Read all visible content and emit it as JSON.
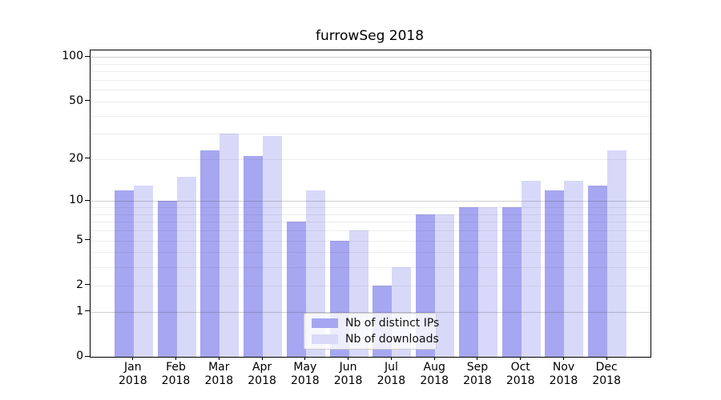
{
  "chart_data": {
    "type": "bar",
    "title": "furrowSeg 2018",
    "categories": [
      "Jan",
      "Feb",
      "Mar",
      "Apr",
      "May",
      "Jun",
      "Jul",
      "Aug",
      "Sep",
      "Oct",
      "Nov",
      "Dec"
    ],
    "category_year": "2018",
    "series": [
      {
        "name": "Nb of distinct IPs",
        "color": "#a6a6f1",
        "bar_fill": "rgba(77,77,227,0.5)",
        "values": [
          12,
          10,
          23,
          21,
          7,
          5,
          2,
          8,
          9,
          9,
          12,
          13
        ]
      },
      {
        "name": "Nb of downloads",
        "color": "#d9d9f8",
        "bar_fill": "rgba(100,100,230,0.25)",
        "values": [
          13,
          15,
          30,
          29,
          12,
          6,
          3,
          8,
          9,
          14,
          14,
          23
        ]
      }
    ],
    "xlabel": "",
    "ylabel": "",
    "yscale": "log1p",
    "ylim": [
      0,
      111
    ],
    "yticks": [
      0,
      1,
      2,
      5,
      10,
      20,
      50,
      100
    ],
    "major_gridlines": [
      1,
      10,
      100
    ],
    "minor_gridlines": [
      2,
      3,
      4,
      5,
      6,
      7,
      8,
      9,
      20,
      30,
      40,
      50,
      60,
      70,
      80,
      90
    ],
    "grid": true,
    "legend_position": "lower center"
  }
}
